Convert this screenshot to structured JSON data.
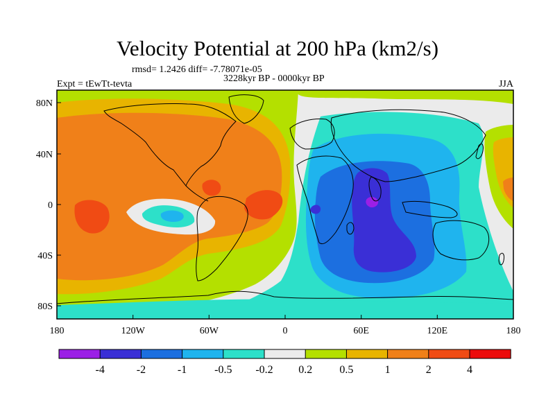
{
  "title": "Velocity Potential at 200 hPa (km2/s)",
  "stats": "rmsd= 1.2426 diff= -7.78071e-05",
  "period": "3228kyr BP - 0000kyr BP",
  "experiment": "Expt = tEwTt-tevta",
  "season": "JJA",
  "axes": {
    "x_ticks": [
      "180",
      "120W",
      "60W",
      "0",
      "60E",
      "120E",
      "180"
    ],
    "y_ticks": [
      "80N",
      "40N",
      "0",
      "40S",
      "80S"
    ]
  },
  "colorbar": {
    "labels": [
      "-4",
      "-2",
      "-1",
      "-0.5",
      "-0.2",
      "0.2",
      "0.5",
      "1",
      "2",
      "4"
    ],
    "colors": [
      "#9b1fe6",
      "#3a2fd6",
      "#1c6fe0",
      "#1fb4ee",
      "#2de0c9",
      "#ebebeb",
      "#b4e000",
      "#e8b400",
      "#f08019",
      "#f04b14",
      "#ec0c0c"
    ]
  }
}
